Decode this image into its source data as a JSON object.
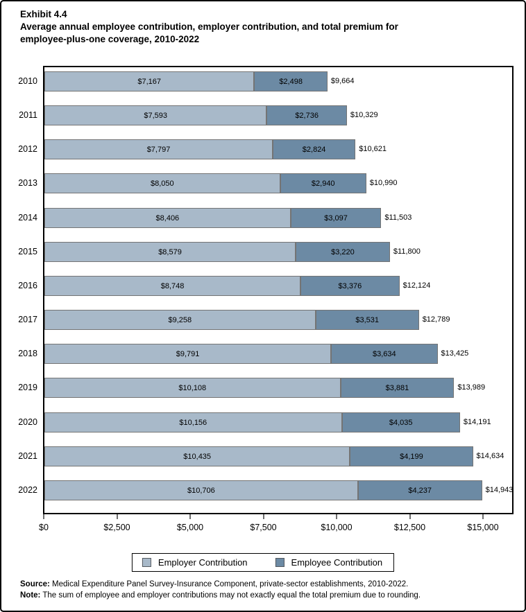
{
  "title": {
    "exhibit_number": "Exhibit 4.4",
    "heading_line1": "Average annual employee contribution, employer contribution, and total premium for",
    "heading_line2": "employee-plus-one coverage, 2010-2022"
  },
  "chart_data": {
    "type": "bar",
    "orientation": "horizontal",
    "stacked": true,
    "title": "Average annual employee contribution, employer contribution, and total premium for employee-plus-one coverage, 2010-2022",
    "categories": [
      "2010",
      "2011",
      "2012",
      "2013",
      "2014",
      "2015",
      "2016",
      "2017",
      "2018",
      "2019",
      "2020",
      "2021",
      "2022"
    ],
    "series": [
      {
        "name": "Employer Contribution",
        "color": "#a8b9c9",
        "values": [
          7167,
          7593,
          7797,
          8050,
          8406,
          8579,
          8748,
          9258,
          9791,
          10108,
          10156,
          10435,
          10706
        ],
        "labels": [
          "$7,167",
          "$7,593",
          "$7,797",
          "$8,050",
          "$8,406",
          "$8,579",
          "$8,748",
          "$9,258",
          "$9,791",
          "$10,108",
          "$10,156",
          "$10,435",
          "$10,706"
        ]
      },
      {
        "name": "Employee Contribution",
        "color": "#6c8aa4",
        "values": [
          2498,
          2736,
          2824,
          2940,
          3097,
          3220,
          3376,
          3531,
          3634,
          3881,
          4035,
          4199,
          4237
        ],
        "labels": [
          "$2,498",
          "$2,736",
          "$2,824",
          "$2,940",
          "$3,097",
          "$3,220",
          "$3,376",
          "$3,531",
          "$3,634",
          "$3,881",
          "$4,035",
          "$4,199",
          "$4,237"
        ]
      }
    ],
    "totals": [
      9664,
      10329,
      10621,
      10990,
      11503,
      11800,
      12124,
      12789,
      13425,
      13989,
      14191,
      14634,
      14943
    ],
    "total_labels": [
      "$9,664",
      "$10,329",
      "$10,621",
      "$10,990",
      "$11,503",
      "$11,800",
      "$12,124",
      "$12,789",
      "$13,425",
      "$13,989",
      "$14,191",
      "$14,634",
      "$14,943"
    ],
    "x_ticks": {
      "values": [
        0,
        2500,
        5000,
        7500,
        10000,
        12500,
        15000
      ],
      "labels": [
        "$0",
        "$2,500",
        "$5,000",
        "$7,500",
        "$10,000",
        "$12,500",
        "$15,000"
      ]
    },
    "xlim": [
      0,
      16000
    ],
    "xlabel": "",
    "ylabel": "",
    "grid": false,
    "legend_position": "bottom"
  },
  "legend": {
    "items": [
      {
        "label": "Employer Contribution",
        "color": "#a8b9c9"
      },
      {
        "label": "Employee Contribution",
        "color": "#6c8aa4"
      }
    ]
  },
  "footer": {
    "source_label": "Source:",
    "source_text": " Medical Expenditure Panel Survey-Insurance Component, private-sector establishments, 2010-2022.",
    "note_label": "Note:",
    "note_text": " The sum of employee and employer contributions may not exactly equal the total premium due to rounding."
  }
}
